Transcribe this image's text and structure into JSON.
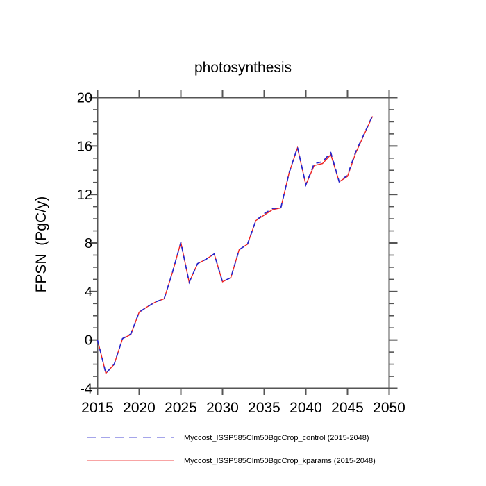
{
  "title": "photosynthesis",
  "chart_data": {
    "type": "line",
    "title": "photosynthesis",
    "xlabel": "",
    "ylabel": "FPSN  (PgC/y)",
    "xlim": [
      2015,
      2050
    ],
    "ylim": [
      -4,
      20
    ],
    "xticks_major": [
      2015,
      2020,
      2025,
      2030,
      2035,
      2040,
      2045,
      2050
    ],
    "yticks_major": [
      -4,
      0,
      4,
      8,
      12,
      16,
      20
    ],
    "y_minor_step": 1,
    "grid": false,
    "legend_position": "bottom-left",
    "axis_color": "#555555",
    "x": [
      2015,
      2016,
      2017,
      2018,
      2019,
      2020,
      2021,
      2022,
      2023,
      2024,
      2025,
      2026,
      2027,
      2028,
      2029,
      2030,
      2031,
      2032,
      2033,
      2034,
      2035,
      2036,
      2037,
      2038,
      2039,
      2040,
      2041,
      2042,
      2043,
      2044,
      2045,
      2046,
      2047,
      2048
    ],
    "series": [
      {
        "name": "Myccost_ISSP585Clm50BgcCrop_control (2015-2048)",
        "color": "#2424cc",
        "style": "dashed",
        "values": [
          0.0,
          -2.75,
          -2.0,
          0.12,
          0.5,
          2.3,
          2.75,
          3.15,
          3.4,
          5.6,
          8.05,
          4.75,
          6.3,
          6.65,
          7.1,
          4.8,
          5.15,
          7.45,
          7.9,
          9.85,
          10.42,
          10.85,
          10.9,
          13.8,
          15.9,
          12.8,
          14.55,
          14.7,
          15.45,
          13.05,
          13.6,
          15.55,
          17.0,
          18.5
        ]
      },
      {
        "name": "Myccost_ISSP585Clm50BgcCrop_kparams (2015-2048)",
        "color": "#ee2020",
        "style": "solid",
        "values": [
          0.0,
          -2.75,
          -2.0,
          0.1,
          0.45,
          2.3,
          2.75,
          3.15,
          3.4,
          5.6,
          8.05,
          4.75,
          6.3,
          6.65,
          7.1,
          4.8,
          5.15,
          7.45,
          7.9,
          9.85,
          10.3,
          10.75,
          10.9,
          13.8,
          15.85,
          12.8,
          14.4,
          14.55,
          15.3,
          13.05,
          13.5,
          15.45,
          16.95,
          18.45
        ]
      }
    ]
  }
}
